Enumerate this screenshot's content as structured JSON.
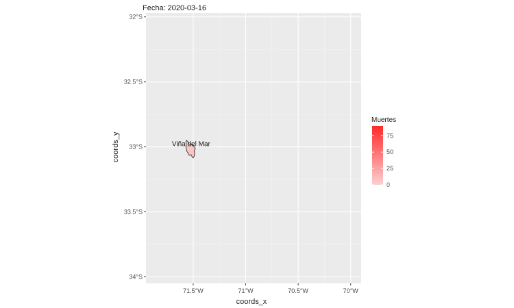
{
  "plot": {
    "title": "Fecha: 2020-03-16",
    "xlabel": "coords_x",
    "ylabel": "coords_y"
  },
  "axes": {
    "x": {
      "ticks": [
        {
          "value": -71.5,
          "label": "71.5°W"
        },
        {
          "value": -71.0,
          "label": "71°W"
        },
        {
          "value": -70.5,
          "label": "70.5°W"
        },
        {
          "value": -70.0,
          "label": "70°W"
        }
      ],
      "range": [
        -71.95,
        -69.9
      ]
    },
    "y": {
      "ticks": [
        {
          "value": -32.0,
          "label": "32°S"
        },
        {
          "value": -32.5,
          "label": "32.5°S"
        },
        {
          "value": -33.0,
          "label": "33°S"
        },
        {
          "value": -33.5,
          "label": "33.5°S"
        },
        {
          "value": -34.0,
          "label": "34°S"
        }
      ],
      "range": [
        -34.05,
        -31.97
      ]
    }
  },
  "legend": {
    "title": "Muertes",
    "placement": "right",
    "low_color": "#fcd0d0",
    "high_color": "#ff2a2a",
    "range": [
      0,
      90
    ],
    "ticks": [
      {
        "value": 0,
        "label": "0"
      },
      {
        "value": 25,
        "label": "25"
      },
      {
        "value": 50,
        "label": "50"
      },
      {
        "value": 75,
        "label": "75"
      }
    ]
  },
  "regions": [
    {
      "name": "Viña del Mar",
      "fill": "#f9c6c6",
      "deaths": 0,
      "label_lon": -71.52,
      "label_lat": -32.995,
      "outline": [
        [
          -71.565,
          -32.95
        ],
        [
          -71.55,
          -32.96
        ],
        [
          -71.545,
          -32.975
        ],
        [
          -71.535,
          -32.98
        ],
        [
          -71.525,
          -32.975
        ],
        [
          -71.51,
          -32.985
        ],
        [
          -71.5,
          -32.985
        ],
        [
          -71.495,
          -32.995
        ],
        [
          -71.49,
          -33.0
        ],
        [
          -71.48,
          -33.015
        ],
        [
          -71.49,
          -33.03
        ],
        [
          -71.485,
          -33.05
        ],
        [
          -71.49,
          -33.07
        ],
        [
          -71.5,
          -33.085
        ],
        [
          -71.51,
          -33.08
        ],
        [
          -71.515,
          -33.065
        ],
        [
          -71.525,
          -33.06
        ],
        [
          -71.535,
          -33.065
        ],
        [
          -71.545,
          -33.06
        ],
        [
          -71.55,
          -33.045
        ],
        [
          -71.56,
          -33.035
        ],
        [
          -71.565,
          -33.02
        ],
        [
          -71.57,
          -33.0
        ],
        [
          -71.565,
          -32.985
        ],
        [
          -71.57,
          -32.97
        ],
        [
          -71.565,
          -32.95
        ]
      ]
    }
  ]
}
